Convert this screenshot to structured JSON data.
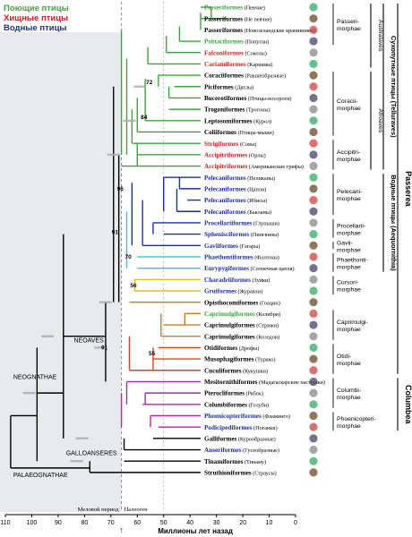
{
  "legend": [
    {
      "text": "Поющие птицы",
      "color": "#3aa53a"
    },
    {
      "text": "Хищные птицы",
      "color": "#d02020"
    },
    {
      "text": "Водные птицы",
      "color": "#1c2fa0"
    }
  ],
  "taxa": [
    {
      "order": "Passeriformes",
      "name": "(Певчие)",
      "color": "#3aa53a"
    },
    {
      "order": "Passeriformes",
      "name": "(Не певчие)",
      "color": "#000000"
    },
    {
      "order": "Passeriformes",
      "name": "(Новозеландские крапивники)",
      "color": "#000000"
    },
    {
      "order": "Psittaciformes",
      "name": "(Попугаи)",
      "color": "#3aa53a"
    },
    {
      "order": "Falconiformes",
      "name": "(Соколы)",
      "color": "#d02020"
    },
    {
      "order": "Cariamiformes",
      "name": "(Кариамы)",
      "color": "#d02020"
    },
    {
      "order": "Coraciiformes",
      "name": "(Ракшеобразные)",
      "color": "#000000"
    },
    {
      "order": "Piciformes",
      "name": "(Дятлы)",
      "color": "#000000"
    },
    {
      "order": "Bucerotiformes",
      "name": "(Птицы-носороги)",
      "color": "#000000"
    },
    {
      "order": "Trogoniformes",
      "name": "(Трогоны)",
      "color": "#000000"
    },
    {
      "order": "Leptosomiformes",
      "name": "(Курол)",
      "color": "#000000"
    },
    {
      "order": "Coliiformes",
      "name": "(Птицы-мыши)",
      "color": "#000000"
    },
    {
      "order": "Strigiformes",
      "name": "(Совы)",
      "color": "#d02020"
    },
    {
      "order": "Accipitriformes",
      "name": "(Орлы)",
      "color": "#d02020"
    },
    {
      "order": "Accipitriformes",
      "name": "(Американские грифы)",
      "color": "#d02020"
    },
    {
      "order": "Pelecaniformes",
      "name": "(Пеликаны)",
      "color": "#1c2fa0"
    },
    {
      "order": "Pelecaniformes",
      "name": "(Цапли)",
      "color": "#1c2fa0"
    },
    {
      "order": "Pelecaniformes",
      "name": "(Ибисы)",
      "color": "#1c2fa0"
    },
    {
      "order": "Pelecaniformes",
      "name": "(Бакланы)",
      "color": "#1c2fa0"
    },
    {
      "order": "Procellariiformes",
      "name": "(Глупыши)",
      "color": "#1c2fa0"
    },
    {
      "order": "Sphenisciformes",
      "name": "(Пингвины)",
      "color": "#1c2fa0"
    },
    {
      "order": "Gaviiformes",
      "name": "(Гагары)",
      "color": "#1c2fa0"
    },
    {
      "order": "Phaethontiformes",
      "name": "(Фаэтоны)",
      "color": "#1c2fa0"
    },
    {
      "order": "Eurypygiformes",
      "name": "(Солнечная цапля)",
      "color": "#1c2fa0"
    },
    {
      "order": "Charadriiformes",
      "name": "(Зуйки)",
      "color": "#1c2fa0"
    },
    {
      "order": "Gruiformes",
      "name": "(Журавли)",
      "color": "#1c2fa0"
    },
    {
      "order": "Opisthocomiformes",
      "name": "(Гоацин)",
      "color": "#000000"
    },
    {
      "order": "Caprimulgiformes",
      "name": "(Колибри)",
      "color": "#3aa53a"
    },
    {
      "order": "Caprimulgiformes",
      "name": "(Стрижи)",
      "color": "#000000"
    },
    {
      "order": "Caprimulgiformes",
      "name": "(Козодои)",
      "color": "#000000"
    },
    {
      "order": "Otidiformes",
      "name": "(Дрофы)",
      "color": "#000000"
    },
    {
      "order": "Musophagiformes",
      "name": "(Турако)",
      "color": "#000000"
    },
    {
      "order": "Cuculiformes",
      "name": "(Кукушки)",
      "color": "#000000"
    },
    {
      "order": "Mesitornithiformes",
      "name": "(Мадагаскарские пастушки)",
      "color": "#000000"
    },
    {
      "order": "Pterocliformes",
      "name": "(Рябок)",
      "color": "#000000"
    },
    {
      "order": "Columbiformes",
      "name": "(Голуби)",
      "color": "#000000"
    },
    {
      "order": "Phoenicopteriformes",
      "name": "(Фламинго)",
      "color": "#1c2fa0"
    },
    {
      "order": "Podicipediformes",
      "name": "(Поганки)",
      "color": "#1c2fa0"
    },
    {
      "order": "Galliformes",
      "name": "(Курообразные)",
      "color": "#000000"
    },
    {
      "order": "Anseriformes",
      "name": "(Гусеобразные)",
      "color": "#1c2fa0"
    },
    {
      "order": "Tinamiformes",
      "name": "(Тинаму)",
      "color": "#000000"
    },
    {
      "order": "Struthioniformes",
      "name": "(Страусы)",
      "color": "#000000"
    }
  ],
  "clades": [
    {
      "id": "passeri",
      "label": "Passeri-\nmorphae"
    },
    {
      "id": "coraci",
      "label": "Coracii-\nmorphae"
    },
    {
      "id": "accipitri",
      "label": "Accipitri-\nmorphae"
    },
    {
      "id": "pelecani",
      "label": "Pelecani-\nmorphae"
    },
    {
      "id": "procellari",
      "label": "Procellarii-\nmorphae"
    },
    {
      "id": "gavii",
      "label": "Gavii-\nmorphae"
    },
    {
      "id": "phaethonti",
      "label": "Phaethonti-\nmorphae"
    },
    {
      "id": "cursori",
      "label": "Cursori-\nmorphae"
    },
    {
      "id": "caprimulgi",
      "label": "Caprimulgi-\nmorphae"
    },
    {
      "id": "otidi",
      "label": "Otidi-\nmorphae"
    },
    {
      "id": "columbi",
      "label": "Columbi-\nmorphae"
    },
    {
      "id": "phoenicopteri",
      "label": "Phoenicopteri-\nmorphae"
    }
  ],
  "groups": {
    "australaves": "Australaves",
    "afroaves": "Afroaves",
    "telluraves": "Сухопутные птицы (Telluraves)",
    "aequornithia": "Водные птицы (Aequornithia)",
    "passerea": "Passerea",
    "columbea": "Columbea"
  },
  "nodes": {
    "neoaves": "NEOAVES",
    "neognathae": "NEOGNATHAE",
    "galloanseres": "GALLOANSERES",
    "palaeognathae": "PALAEOGNATHAE"
  },
  "support": [
    "72",
    "84",
    "96",
    "91",
    "70",
    "56",
    "91",
    "55"
  ],
  "axis": {
    "ticks": [
      "110",
      "100",
      "90",
      "80",
      "70",
      "60",
      "50",
      "40",
      "30",
      "20",
      "10",
      "0"
    ],
    "title": "Миллионы лет назад",
    "period_left": "Меловой период",
    "period_right": "Палеоген"
  }
}
